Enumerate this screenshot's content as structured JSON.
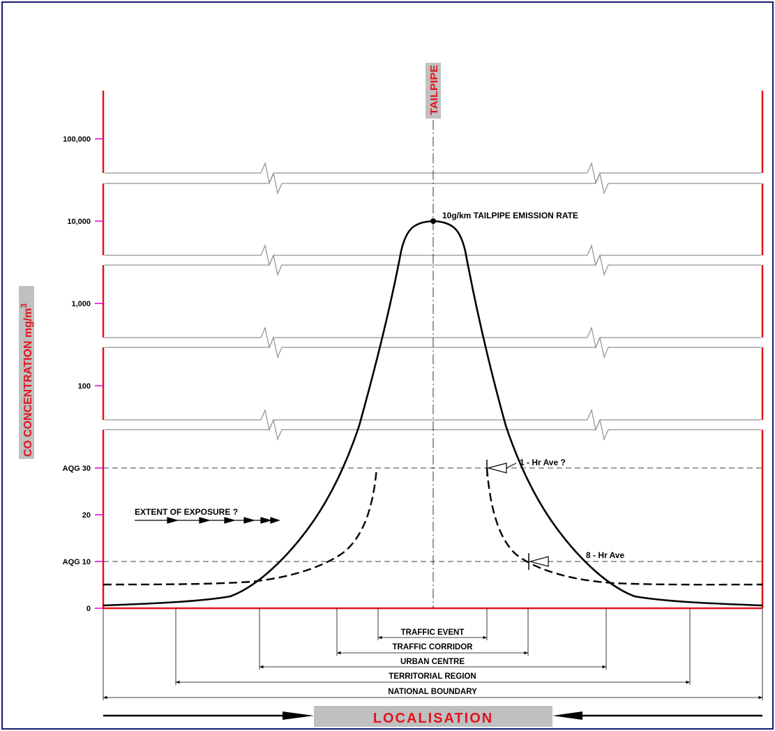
{
  "y_axis": {
    "title": "CO CONCENTRATION mg/m",
    "title_superscript": "3",
    "ticks": [
      "100,000",
      "10,000",
      "1,000",
      "100",
      "AQG 30",
      "20",
      "AQG 10",
      "0"
    ]
  },
  "tailpipe_label": "TAILPIPE",
  "peak_annotation": "10g/km TAILPIPE EMISSION RATE",
  "averages": {
    "one_hour": "1 - Hr Ave ?",
    "eight_hour": "8 - Hr Ave"
  },
  "exposure_label": "EXTENT OF EXPOSURE ?",
  "extents": [
    "TRAFFIC EVENT",
    "TRAFFIC CORRIDOR",
    "URBAN CENTRE",
    "TERRITORIAL REGION",
    "NATIONAL BOUNDARY"
  ],
  "localisation_label": "LOCALISATION",
  "colors": {
    "frame": "#1a1a6e",
    "red": "#e0141e",
    "magenta": "#e000d0",
    "label_bg": "#c0c0c0",
    "break_lines": "#909090"
  }
}
